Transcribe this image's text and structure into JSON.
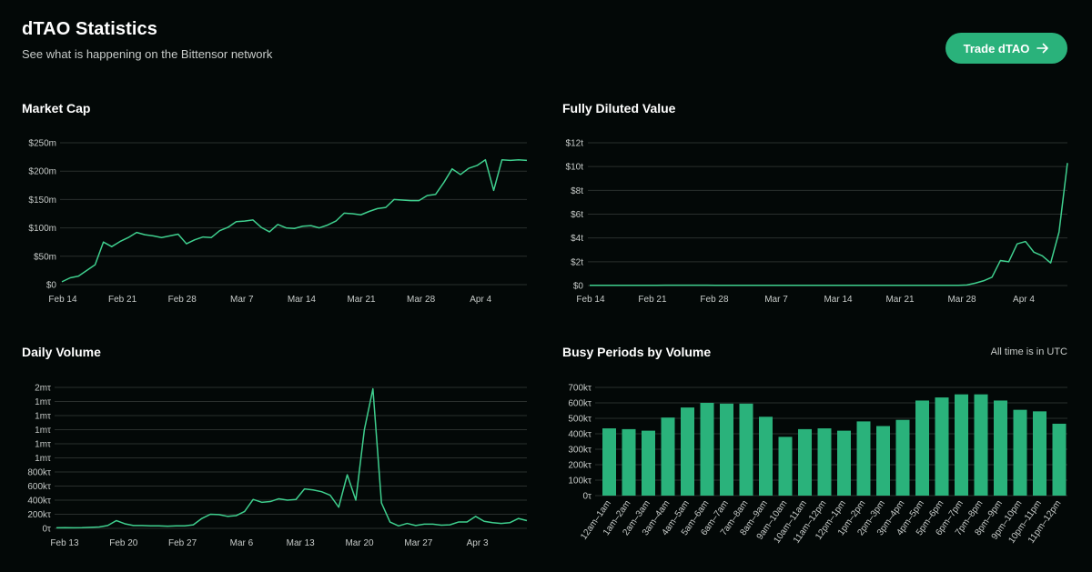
{
  "header": {
    "title": "dTAO Statistics",
    "subtitle": "See what is happening on the Bittensor network",
    "trade_button": "Trade dTAO"
  },
  "timezone_note": "All time is in UTC",
  "colors": {
    "accent": "#2ab27b",
    "line": "#3fcf8e",
    "grid": "#2a2f2d",
    "background": "#030807"
  },
  "icons": {
    "trade_button": "arrow-right-icon"
  },
  "chart_data": [
    {
      "id": "market_cap",
      "type": "line",
      "title": "Market Cap",
      "x_labels": [
        "Feb 14",
        "Feb 21",
        "Feb 28",
        "Mar 7",
        "Mar 14",
        "Mar 21",
        "Mar 28",
        "Apr 4"
      ],
      "y_ticks": [
        "$0",
        "$50m",
        "$100m",
        "$150m",
        "$200m",
        "$250m"
      ],
      "ylim": [
        0,
        250
      ],
      "x_range": [
        0,
        56
      ],
      "unit": "$m",
      "series": [
        {
          "name": "Market Cap",
          "values": [
            5,
            12,
            15,
            25,
            35,
            75,
            67,
            76,
            83,
            92,
            88,
            86,
            83,
            86,
            89,
            72,
            79,
            84,
            83,
            95,
            101,
            111,
            112,
            114,
            101,
            93,
            106,
            100,
            99,
            103,
            104,
            100,
            105,
            112,
            126,
            125,
            123,
            129,
            134,
            136,
            150,
            149,
            148,
            148,
            157,
            159,
            180,
            204,
            194,
            205,
            210,
            220,
            166,
            220,
            219,
            220,
            219
          ]
        }
      ]
    },
    {
      "id": "fully_diluted_value",
      "type": "line",
      "title": "Fully Diluted Value",
      "x_labels": [
        "Feb 14",
        "Feb 21",
        "Feb 28",
        "Mar 7",
        "Mar 14",
        "Mar 21",
        "Mar 28",
        "Apr 4"
      ],
      "y_ticks": [
        "$0",
        "$2t",
        "$4t",
        "$6t",
        "$8t",
        "$10t",
        "$12t"
      ],
      "ylim": [
        0,
        12
      ],
      "x_range": [
        0,
        56
      ],
      "unit": "$t",
      "series": [
        {
          "name": "Fully Diluted Value",
          "values": [
            0.02,
            0.02,
            0.02,
            0.02,
            0.02,
            0.02,
            0.02,
            0.02,
            0.02,
            0.03,
            0.03,
            0.03,
            0.03,
            0.03,
            0.03,
            0.02,
            0.02,
            0.02,
            0.02,
            0.02,
            0.02,
            0.02,
            0.02,
            0.02,
            0.02,
            0.02,
            0.02,
            0.02,
            0.02,
            0.02,
            0.02,
            0.02,
            0.02,
            0.02,
            0.02,
            0.02,
            0.02,
            0.02,
            0.02,
            0.02,
            0.02,
            0.02,
            0.02,
            0.02,
            0.02,
            0.05,
            0.2,
            0.4,
            0.7,
            2.1,
            2.0,
            3.5,
            3.7,
            2.8,
            2.5,
            1.9,
            4.5,
            10.3
          ]
        }
      ]
    },
    {
      "id": "daily_volume",
      "type": "line",
      "title": "Daily Volume",
      "x_labels": [
        "Feb 13",
        "Feb 20",
        "Feb 27",
        "Mar 6",
        "Mar 13",
        "Mar 20",
        "Mar 27",
        "Apr 3"
      ],
      "y_ticks": [
        "0τ",
        "200kτ",
        "400kτ",
        "600kτ",
        "800kτ",
        "1mτ",
        "1mτ",
        "1mτ",
        "1mτ",
        "1mτ",
        "2mτ"
      ],
      "ylim": [
        0,
        2000
      ],
      "x_range": [
        0,
        56
      ],
      "unit": "kτ",
      "series": [
        {
          "name": "Daily Volume",
          "values": [
            8,
            10,
            8,
            10,
            15,
            20,
            40,
            110,
            65,
            40,
            40,
            35,
            35,
            30,
            35,
            35,
            50,
            140,
            200,
            195,
            170,
            180,
            240,
            410,
            370,
            380,
            420,
            400,
            410,
            560,
            545,
            520,
            470,
            300,
            760,
            400,
            1400,
            1980,
            360,
            90,
            35,
            70,
            40,
            60,
            60,
            45,
            50,
            90,
            90,
            170,
            100,
            80,
            70,
            80,
            140,
            110
          ]
        }
      ]
    },
    {
      "id": "busy_periods",
      "type": "bar",
      "title": "Busy Periods by Volume",
      "categories": [
        "12am–1am",
        "1am–2am",
        "2am–3am",
        "3am–4am",
        "4am–5am",
        "5am–6am",
        "6am–7am",
        "7am–8am",
        "8am–9am",
        "9am–10am",
        "10am–11am",
        "11am–12pm",
        "12pm–1pm",
        "1pm–2pm",
        "2pm–3pm",
        "3pm–4pm",
        "4pm–5pm",
        "5pm–6pm",
        "6pm–7pm",
        "7pm–8pm",
        "8pm–9pm",
        "9pm–10pm",
        "10pm–11pm",
        "11pm–12pm"
      ],
      "values": [
        435,
        430,
        420,
        505,
        570,
        600,
        595,
        595,
        510,
        380,
        430,
        435,
        420,
        480,
        450,
        490,
        615,
        635,
        655,
        655,
        615,
        555,
        545,
        465
      ],
      "y_ticks": [
        "0τ",
        "100kτ",
        "200kτ",
        "300kτ",
        "400kτ",
        "500kτ",
        "600kτ",
        "700kτ"
      ],
      "ylim": [
        0,
        700
      ],
      "unit": "kτ"
    }
  ]
}
